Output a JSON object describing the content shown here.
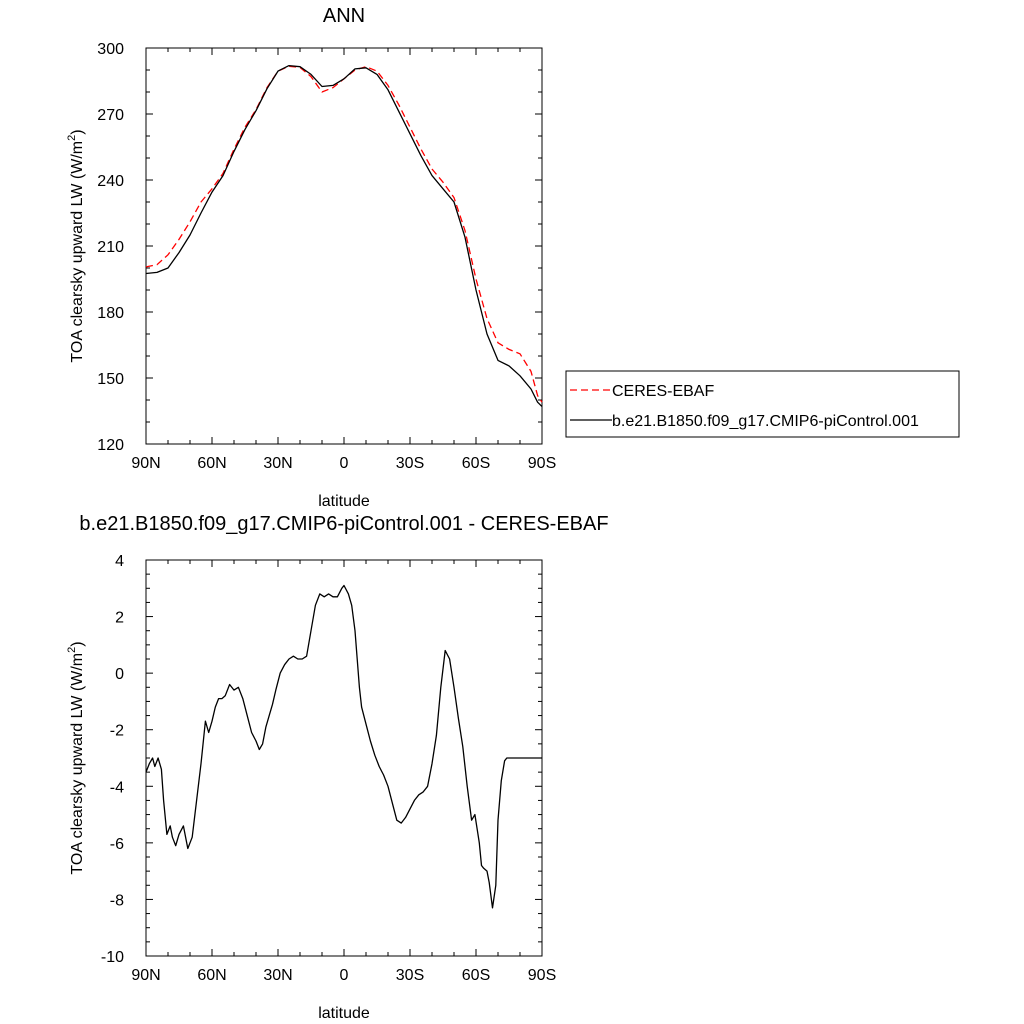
{
  "chart_data": [
    {
      "type": "line",
      "title": "ANN",
      "xlabel": "latitude",
      "ylabel": "TOA clearsky upward LW (W/m²)",
      "xlim": [
        90,
        -90
      ],
      "ylim": [
        120,
        300
      ],
      "xticks": [
        {
          "value": 90,
          "label": "90N"
        },
        {
          "value": 60,
          "label": "60N"
        },
        {
          "value": 30,
          "label": "30N"
        },
        {
          "value": 0,
          "label": "0"
        },
        {
          "value": -30,
          "label": "30S"
        },
        {
          "value": -60,
          "label": "60S"
        },
        {
          "value": -90,
          "label": "90S"
        }
      ],
      "yticks": [
        {
          "value": 300,
          "label": "300"
        },
        {
          "value": 270,
          "label": "270"
        },
        {
          "value": 240,
          "label": "240"
        },
        {
          "value": 210,
          "label": "210"
        },
        {
          "value": 180,
          "label": "180"
        },
        {
          "value": 150,
          "label": "150"
        },
        {
          "value": 120,
          "label": "120"
        }
      ],
      "legend": {
        "placement": "right"
      },
      "series": [
        {
          "name": "CERES-EBAF",
          "color": "#ff0000",
          "dash": true,
          "x": [
            90,
            85,
            80,
            75,
            70,
            65,
            60,
            55,
            50,
            45,
            40,
            35,
            30,
            25,
            20,
            15,
            10,
            5,
            0,
            -5,
            -10,
            -15,
            -20,
            -25,
            -30,
            -35,
            -40,
            -45,
            -50,
            -55,
            -60,
            -65,
            -70,
            -75,
            -80,
            -85,
            -88,
            -90
          ],
          "y": [
            200.5,
            201.5,
            206,
            213,
            221,
            230,
            236,
            243,
            254,
            264,
            272,
            282,
            289.5,
            291.7,
            291.2,
            287,
            280,
            282,
            286,
            290,
            291.5,
            289.5,
            283,
            274,
            264,
            254,
            245,
            239,
            232,
            217,
            195,
            177,
            166,
            163,
            161,
            153,
            142,
            139
          ]
        },
        {
          "name": "b.e21.B1850.f09_g17.CMIP6-piControl.001",
          "color": "#000000",
          "dash": false,
          "x": [
            90,
            85,
            80,
            75,
            70,
            65,
            60,
            55,
            50,
            45,
            40,
            35,
            30,
            25,
            20,
            15,
            10,
            5,
            0,
            -5,
            -10,
            -15,
            -20,
            -25,
            -30,
            -35,
            -40,
            -45,
            -50,
            -55,
            -60,
            -65,
            -70,
            -75,
            -80,
            -85,
            -88,
            -90
          ],
          "y": [
            197.5,
            198,
            200,
            207,
            215,
            225,
            234.5,
            242,
            253,
            263,
            271.5,
            281.5,
            289.5,
            292,
            291.5,
            288,
            282.5,
            283,
            286,
            290.5,
            291,
            288,
            281,
            271,
            261,
            251,
            242,
            236,
            230,
            214,
            190,
            170,
            158,
            155.5,
            151,
            145,
            139,
            137
          ]
        }
      ]
    },
    {
      "type": "line",
      "title": "b.e21.B1850.f09_g17.CMIP6-piControl.001 - CERES-EBAF",
      "xlabel": "latitude",
      "ylabel": "TOA clearsky upward LW (W/m²)",
      "xlim": [
        90,
        -90
      ],
      "ylim": [
        -10,
        4
      ],
      "xticks": [
        {
          "value": 90,
          "label": "90N"
        },
        {
          "value": 60,
          "label": "60N"
        },
        {
          "value": 30,
          "label": "30N"
        },
        {
          "value": 0,
          "label": "0"
        },
        {
          "value": -30,
          "label": "30S"
        },
        {
          "value": -60,
          "label": "60S"
        },
        {
          "value": -90,
          "label": "90S"
        }
      ],
      "yticks": [
        {
          "value": 4,
          "label": "4"
        },
        {
          "value": 2,
          "label": "2"
        },
        {
          "value": 0,
          "label": "0"
        },
        {
          "value": -2,
          "label": "-2"
        },
        {
          "value": -4,
          "label": "-4"
        },
        {
          "value": -6,
          "label": "-6"
        },
        {
          "value": -8,
          "label": "-8"
        },
        {
          "value": -10,
          "label": "-10"
        }
      ],
      "series": [
        {
          "color": "#000000",
          "dash": false,
          "x": [
            90,
            88.5,
            87,
            86,
            84.5,
            83,
            82,
            80.5,
            79,
            78,
            76.5,
            75,
            73,
            71,
            69,
            67,
            65,
            63,
            61.5,
            60,
            58.5,
            57,
            55.5,
            54,
            52,
            50,
            48,
            46,
            44,
            42,
            40,
            38.5,
            37,
            35.5,
            34,
            32.5,
            31,
            29,
            27,
            25,
            23,
            21,
            19,
            17,
            15,
            13,
            11,
            9,
            7,
            5,
            3,
            1,
            0,
            -2,
            -3.5,
            -5,
            -6,
            -7,
            -8,
            -10,
            -12,
            -14,
            -16,
            -18,
            -20,
            -22,
            -24,
            -26,
            -28,
            -30,
            -32,
            -34,
            -36,
            -38,
            -40,
            -42,
            -44,
            -46,
            -48,
            -50,
            -52,
            -54,
            -56,
            -58,
            -59.5,
            -60.5,
            -61.5,
            -62.5,
            -63.5,
            -65,
            -66,
            -67.5,
            -69,
            -70,
            -71.5,
            -73,
            -74,
            -75.5,
            -77,
            -78,
            -79.5,
            -81,
            -82.5,
            -84,
            -85,
            -86,
            -87,
            -88,
            -89,
            -90
          ],
          "y": [
            -3.5,
            -3.2,
            -3.0,
            -3.3,
            -3.0,
            -3.4,
            -4.5,
            -5.7,
            -5.4,
            -5.8,
            -6.1,
            -5.7,
            -5.4,
            -6.2,
            -5.8,
            -4.5,
            -3.2,
            -1.7,
            -2.1,
            -1.7,
            -1.2,
            -0.9,
            -0.9,
            -0.8,
            -0.4,
            -0.6,
            -0.5,
            -0.9,
            -1.5,
            -2.1,
            -2.4,
            -2.7,
            -2.5,
            -1.9,
            -1.5,
            -1.1,
            -0.6,
            0.0,
            0.3,
            0.5,
            0.6,
            0.5,
            0.5,
            0.6,
            1.5,
            2.4,
            2.8,
            2.7,
            2.8,
            2.7,
            2.7,
            3.0,
            3.1,
            2.8,
            2.4,
            1.5,
            0.5,
            -0.5,
            -1.2,
            -1.8,
            -2.4,
            -2.9,
            -3.3,
            -3.6,
            -4.0,
            -4.6,
            -5.2,
            -5.3,
            -5.1,
            -4.8,
            -4.5,
            -4.3,
            -4.2,
            -4.0,
            -3.2,
            -2.2,
            -0.5,
            0.8,
            0.5,
            -0.5,
            -1.6,
            -2.6,
            -4.0,
            -5.2,
            -5.0,
            -5.5,
            -6.0,
            -6.8,
            -6.9,
            -7.0,
            -7.4,
            -8.3,
            -7.5,
            -5.2,
            -3.8,
            -3.1,
            -3.0,
            -3.0,
            -3.0,
            -3.0,
            -3.0,
            -3.0,
            -3.0,
            -3.0,
            -3.0,
            -3.0,
            -3.0,
            -3.0,
            -3.0,
            -3.0
          ]
        }
      ]
    }
  ],
  "legend": [
    {
      "label": "CERES-EBAF",
      "color": "#ff0000",
      "dash": true
    },
    {
      "label": "b.e21.B1850.f09_g17.CMIP6-piControl.001",
      "color": "#000000",
      "dash": false
    }
  ]
}
